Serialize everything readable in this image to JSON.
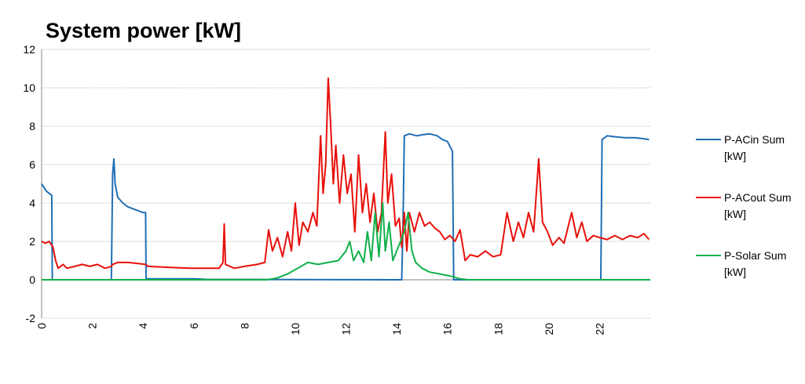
{
  "chart_data": {
    "type": "line",
    "title": "System power [kW]",
    "xlabel": "",
    "ylabel": "",
    "xlim": [
      0,
      24
    ],
    "ylim": [
      -2,
      12
    ],
    "yticks": [
      -2,
      0,
      2,
      4,
      6,
      8,
      10,
      12
    ],
    "xticks": [
      0,
      2,
      4,
      6,
      8,
      10,
      12,
      14,
      16,
      18,
      20,
      22
    ],
    "grid": "horizontal",
    "legend_position": "right",
    "series": [
      {
        "name": "P-ACin Sum [kW]",
        "color": "#1f6fb4",
        "points": [
          [
            0.0,
            5.0
          ],
          [
            0.1,
            4.8
          ],
          [
            0.2,
            4.6
          ],
          [
            0.3,
            4.5
          ],
          [
            0.4,
            4.4
          ],
          [
            0.42,
            0.0
          ],
          [
            2.75,
            0.0
          ],
          [
            2.8,
            5.5
          ],
          [
            2.85,
            6.3
          ],
          [
            2.9,
            5.0
          ],
          [
            3.0,
            4.3
          ],
          [
            3.2,
            4.0
          ],
          [
            3.4,
            3.8
          ],
          [
            3.6,
            3.7
          ],
          [
            3.8,
            3.6
          ],
          [
            4.0,
            3.5
          ],
          [
            4.1,
            3.5
          ],
          [
            4.12,
            0.05
          ],
          [
            6.0,
            0.05
          ],
          [
            6.5,
            0.02
          ],
          [
            14.2,
            0.0
          ],
          [
            14.25,
            3.0
          ],
          [
            14.3,
            7.5
          ],
          [
            14.5,
            7.6
          ],
          [
            14.8,
            7.5
          ],
          [
            15.0,
            7.55
          ],
          [
            15.3,
            7.6
          ],
          [
            15.6,
            7.5
          ],
          [
            15.8,
            7.3
          ],
          [
            16.0,
            7.2
          ],
          [
            16.2,
            6.7
          ],
          [
            16.25,
            0.0
          ],
          [
            22.05,
            0.0
          ],
          [
            22.1,
            7.3
          ],
          [
            22.3,
            7.5
          ],
          [
            22.6,
            7.45
          ],
          [
            23.0,
            7.4
          ],
          [
            23.4,
            7.4
          ],
          [
            23.7,
            7.35
          ],
          [
            23.95,
            7.3
          ]
        ]
      },
      {
        "name": "P-ACout Sum [kW]",
        "color": "#e8100a",
        "points": [
          [
            0.0,
            2.0
          ],
          [
            0.15,
            1.9
          ],
          [
            0.3,
            2.0
          ],
          [
            0.45,
            1.7
          ],
          [
            0.55,
            1.0
          ],
          [
            0.65,
            0.6
          ],
          [
            0.85,
            0.8
          ],
          [
            1.0,
            0.6
          ],
          [
            1.3,
            0.7
          ],
          [
            1.6,
            0.8
          ],
          [
            1.9,
            0.7
          ],
          [
            2.2,
            0.8
          ],
          [
            2.5,
            0.6
          ],
          [
            2.75,
            0.7
          ],
          [
            2.8,
            0.8
          ],
          [
            3.0,
            0.9
          ],
          [
            3.4,
            0.9
          ],
          [
            3.8,
            0.85
          ],
          [
            4.1,
            0.8
          ],
          [
            4.2,
            0.7
          ],
          [
            5.0,
            0.65
          ],
          [
            5.8,
            0.6
          ],
          [
            6.5,
            0.6
          ],
          [
            7.0,
            0.6
          ],
          [
            7.15,
            0.9
          ],
          [
            7.2,
            2.9
          ],
          [
            7.25,
            0.8
          ],
          [
            7.6,
            0.6
          ],
          [
            8.0,
            0.7
          ],
          [
            8.5,
            0.8
          ],
          [
            8.8,
            0.9
          ],
          [
            8.95,
            2.6
          ],
          [
            9.1,
            1.5
          ],
          [
            9.3,
            2.2
          ],
          [
            9.5,
            1.2
          ],
          [
            9.7,
            2.5
          ],
          [
            9.85,
            1.5
          ],
          [
            10.0,
            4.0
          ],
          [
            10.15,
            1.8
          ],
          [
            10.3,
            3.0
          ],
          [
            10.5,
            2.5
          ],
          [
            10.7,
            3.5
          ],
          [
            10.85,
            2.8
          ],
          [
            11.0,
            7.5
          ],
          [
            11.1,
            4.5
          ],
          [
            11.2,
            6.0
          ],
          [
            11.3,
            10.5
          ],
          [
            11.4,
            8.0
          ],
          [
            11.5,
            5.0
          ],
          [
            11.6,
            7.0
          ],
          [
            11.75,
            4.0
          ],
          [
            11.9,
            6.5
          ],
          [
            12.05,
            4.5
          ],
          [
            12.2,
            5.5
          ],
          [
            12.35,
            2.5
          ],
          [
            12.5,
            6.5
          ],
          [
            12.65,
            3.5
          ],
          [
            12.8,
            5.0
          ],
          [
            12.95,
            3.0
          ],
          [
            13.1,
            4.5
          ],
          [
            13.25,
            2.5
          ],
          [
            13.4,
            3.5
          ],
          [
            13.55,
            7.7
          ],
          [
            13.65,
            4.0
          ],
          [
            13.8,
            5.5
          ],
          [
            13.95,
            2.8
          ],
          [
            14.1,
            3.2
          ],
          [
            14.2,
            1.7
          ],
          [
            14.3,
            3.5
          ],
          [
            14.4,
            1.5
          ],
          [
            14.5,
            3.5
          ],
          [
            14.7,
            2.5
          ],
          [
            14.9,
            3.5
          ],
          [
            15.1,
            2.8
          ],
          [
            15.3,
            3.0
          ],
          [
            15.5,
            2.7
          ],
          [
            15.7,
            2.5
          ],
          [
            15.9,
            2.1
          ],
          [
            16.1,
            2.3
          ],
          [
            16.3,
            2.0
          ],
          [
            16.5,
            2.6
          ],
          [
            16.7,
            1.0
          ],
          [
            16.9,
            1.3
          ],
          [
            17.2,
            1.2
          ],
          [
            17.5,
            1.5
          ],
          [
            17.8,
            1.2
          ],
          [
            18.1,
            1.3
          ],
          [
            18.35,
            3.5
          ],
          [
            18.6,
            2.0
          ],
          [
            18.8,
            3.0
          ],
          [
            19.0,
            2.2
          ],
          [
            19.2,
            3.5
          ],
          [
            19.4,
            2.5
          ],
          [
            19.6,
            6.3
          ],
          [
            19.75,
            3.0
          ],
          [
            19.95,
            2.5
          ],
          [
            20.15,
            1.8
          ],
          [
            20.4,
            2.2
          ],
          [
            20.6,
            1.9
          ],
          [
            20.9,
            3.5
          ],
          [
            21.1,
            2.2
          ],
          [
            21.3,
            3.0
          ],
          [
            21.5,
            2.0
          ],
          [
            21.75,
            2.3
          ],
          [
            22.0,
            2.2
          ],
          [
            22.3,
            2.1
          ],
          [
            22.6,
            2.3
          ],
          [
            22.9,
            2.1
          ],
          [
            23.2,
            2.3
          ],
          [
            23.5,
            2.2
          ],
          [
            23.75,
            2.4
          ],
          [
            23.95,
            2.1
          ]
        ]
      },
      {
        "name": "P-Solar Sum [kW]",
        "color": "#11b04a",
        "points": [
          [
            0.0,
            0.0
          ],
          [
            8.9,
            0.0
          ],
          [
            9.3,
            0.1
          ],
          [
            9.7,
            0.3
          ],
          [
            10.1,
            0.6
          ],
          [
            10.5,
            0.9
          ],
          [
            10.9,
            0.8
          ],
          [
            11.3,
            0.9
          ],
          [
            11.7,
            1.0
          ],
          [
            12.0,
            1.5
          ],
          [
            12.15,
            2.0
          ],
          [
            12.3,
            1.0
          ],
          [
            12.5,
            1.5
          ],
          [
            12.7,
            0.9
          ],
          [
            12.85,
            2.5
          ],
          [
            13.0,
            1.0
          ],
          [
            13.15,
            3.5
          ],
          [
            13.3,
            1.2
          ],
          [
            13.45,
            4.0
          ],
          [
            13.55,
            1.5
          ],
          [
            13.7,
            3.0
          ],
          [
            13.85,
            1.0
          ],
          [
            14.0,
            1.5
          ],
          [
            14.3,
            2.5
          ],
          [
            14.45,
            3.5
          ],
          [
            14.6,
            1.5
          ],
          [
            14.75,
            0.9
          ],
          [
            15.0,
            0.6
          ],
          [
            15.3,
            0.4
          ],
          [
            15.7,
            0.3
          ],
          [
            16.1,
            0.2
          ],
          [
            16.5,
            0.05
          ],
          [
            16.8,
            0.0
          ],
          [
            24.0,
            0.0
          ]
        ]
      }
    ]
  }
}
